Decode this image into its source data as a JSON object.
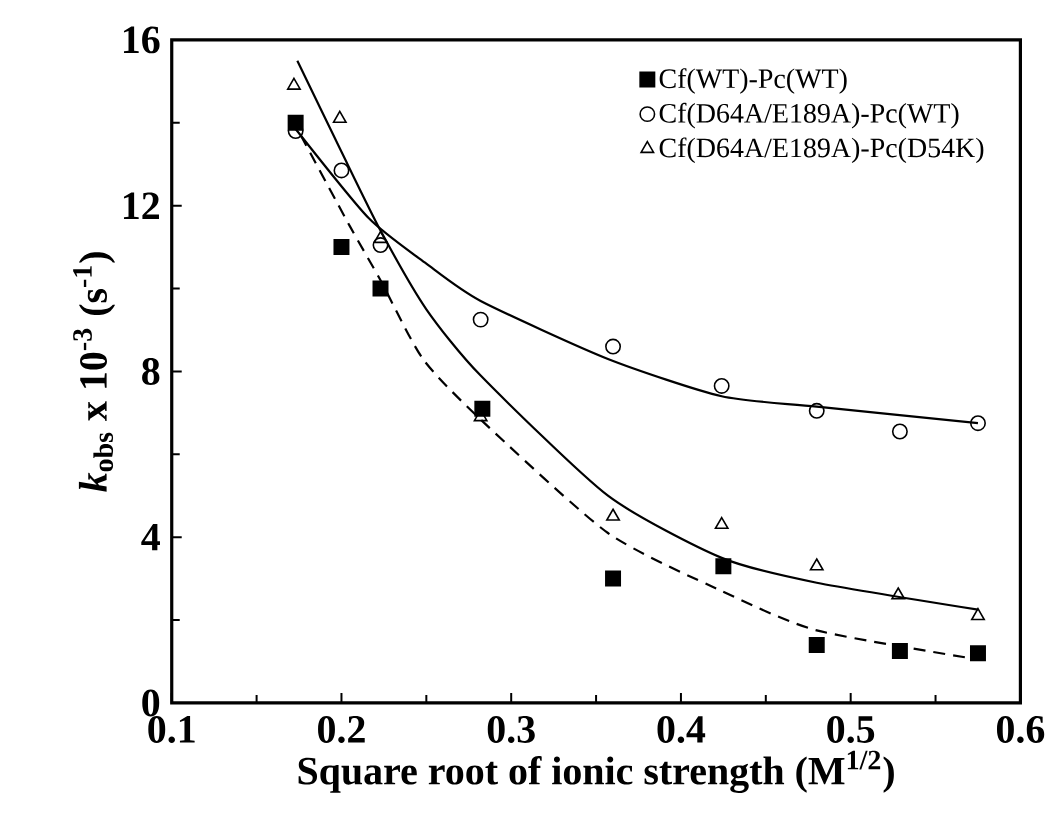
{
  "chart_data": {
    "type": "scatter",
    "xlabel": "Square root of ionic strength (M$^{1/2}$)",
    "ylabel": "*k*$_{obs}$ x 10$^{-3}$ (s$^{-1}$)",
    "xlim": [
      0.1,
      0.6
    ],
    "ylim": [
      0,
      16
    ],
    "xticks": [
      0.1,
      0.2,
      0.3,
      0.4,
      0.5,
      0.6
    ],
    "yticks": [
      0,
      4,
      8,
      12,
      16
    ],
    "grid": false,
    "legend": "top right",
    "series": [
      {
        "name": "Cf(WT)-Pc(WT)",
        "marker": "square",
        "color": "#000000",
        "x": [
          0.173,
          0.2,
          0.223,
          0.283,
          0.36,
          0.425,
          0.48,
          0.529,
          0.575
        ],
        "values": [
          14.0,
          11.0,
          10.0,
          7.1,
          3.0,
          3.3,
          1.4,
          1.25,
          1.2
        ]
      },
      {
        "name": "Cf(D64A/E189A)-Pc(WT)",
        "marker": "circle",
        "color": "#000000",
        "x": [
          0.173,
          0.2,
          0.223,
          0.282,
          0.36,
          0.424,
          0.48,
          0.529,
          0.575
        ],
        "values": [
          13.8,
          12.85,
          11.05,
          9.25,
          8.6,
          7.65,
          7.05,
          6.55,
          6.75
        ]
      },
      {
        "name": "Cf(D64A/E189A)-Pc(D54K)",
        "marker": "triangle",
        "color": "#000000",
        "x": [
          0.172,
          0.199,
          0.223,
          0.282,
          0.36,
          0.424,
          0.48,
          0.528,
          0.575
        ],
        "values": [
          14.9,
          14.1,
          11.2,
          6.9,
          4.5,
          4.3,
          3.3,
          2.6,
          2.1
        ]
      },
      {
        "type": "line",
        "marker": "none",
        "line_style": "dashed",
        "color": "#000000",
        "x": [
          0.176,
          0.205,
          0.223,
          0.248,
          0.283,
          0.357,
          0.424,
          0.48,
          0.575
        ],
        "values": [
          13.7,
          11.5,
          10.2,
          8.3,
          6.8,
          4.1,
          2.7,
          1.75,
          1.05
        ]
      },
      {
        "type": "line",
        "marker": "none",
        "line_style": "solid",
        "color": "#000000",
        "x": [
          0.173,
          0.216,
          0.25,
          0.282,
          0.357,
          0.424,
          0.48,
          0.575
        ],
        "values": [
          13.85,
          11.7,
          10.6,
          9.7,
          8.3,
          7.4,
          7.15,
          6.75
        ]
      },
      {
        "type": "line",
        "marker": "none",
        "line_style": "solid",
        "color": "#000000",
        "x": [
          0.174,
          0.2,
          0.223,
          0.25,
          0.282,
          0.357,
          0.424,
          0.48,
          0.575
        ],
        "values": [
          15.5,
          13.3,
          11.4,
          9.5,
          7.9,
          5.0,
          3.5,
          2.9,
          2.25
        ]
      }
    ]
  }
}
